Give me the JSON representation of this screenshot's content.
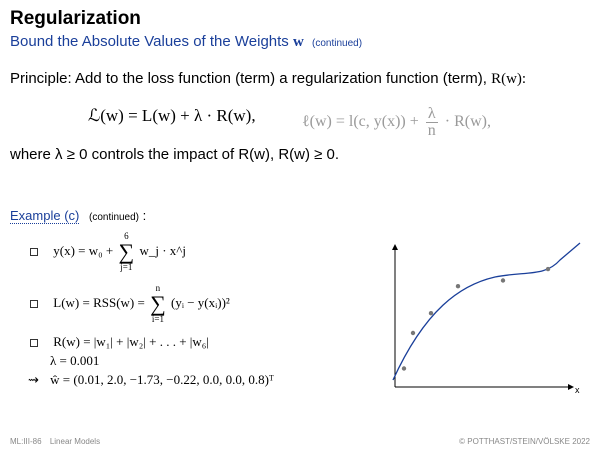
{
  "header": {
    "title": "Regularization",
    "subtitle": "Bound the Absolute Values of the Weights",
    "subtitle_symbol": "w",
    "subtitle_note": "(continued)"
  },
  "principle": {
    "text": "Principle: Add to the loss function (term) a regularization function (term),",
    "symbol": "R(w):"
  },
  "formula_main": "ℒ(w)  =  L(w)  +  λ · R(w),",
  "formula_alt": {
    "lhs": "ℓ(w)  =  l(c, y(x))  +",
    "frac_num": "λ",
    "frac_den": "n",
    "rhs": "· R(w),"
  },
  "where_line": "where λ ≥ 0 controls the impact of R(w), R(w) ≥ 0.",
  "example": {
    "label": "Example (c)",
    "note": "(continued)",
    "colon": ":"
  },
  "items": {
    "item1": {
      "lhs": "y(x) = w₀ +",
      "sum_top": "6",
      "sum_bottom": "j=1",
      "rhs": "w_j · x^j"
    },
    "item2": {
      "lhs": "L(w) = RSS(w) =",
      "sum_top": "n",
      "sum_bottom": "i=1",
      "rhs": "(yᵢ − y(xᵢ))²"
    },
    "item3": {
      "line1": "R(w) = |w₁| + |w₂| + . . . + |w₆|",
      "line2": "λ = 0.001"
    },
    "result": {
      "arrow": "⇝",
      "text": "ŵ = (0.01, 2.0, −1.73, −0.22, 0.0, 0.0, 0.8)ᵀ"
    }
  },
  "plot": {
    "x_axis_label": "x",
    "points": [
      {
        "x": 0.05,
        "y": 0.13
      },
      {
        "x": 0.1,
        "y": 0.38
      },
      {
        "x": 0.2,
        "y": 0.52
      },
      {
        "x": 0.35,
        "y": 0.71
      },
      {
        "x": 0.6,
        "y": 0.75
      },
      {
        "x": 0.85,
        "y": 0.83
      }
    ],
    "curve_color": "#1a3f9a",
    "point_color": "#777777"
  },
  "footer": {
    "left_code": "ML:III-86",
    "left_title": "Linear Models",
    "right": "© POTTHAST/STEIN/VÖLSKE 2022"
  }
}
